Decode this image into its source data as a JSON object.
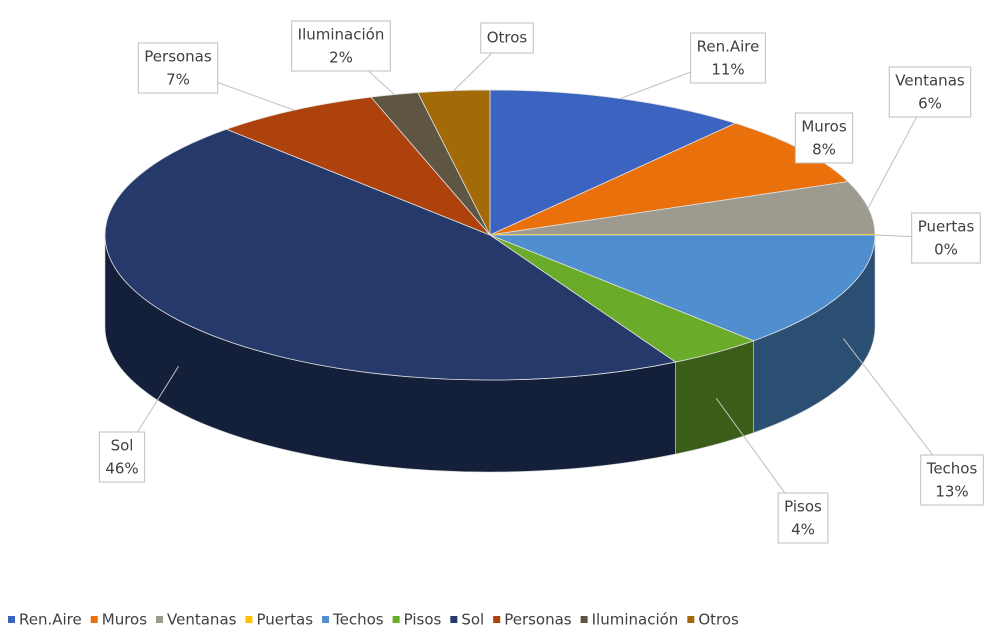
{
  "chart_data": {
    "type": "pie",
    "categories": [
      "Ren.Aire",
      "Muros",
      "Ventanas",
      "Puertas",
      "Techos",
      "Pisos",
      "Sol",
      "Personas",
      "Iluminación",
      "Otros"
    ],
    "values": [
      11,
      8,
      6,
      0,
      13,
      4,
      46,
      7,
      2,
      3
    ],
    "value_labels": [
      "11%",
      "8%",
      "6%",
      "0%",
      "13%",
      "4%",
      "46%",
      "7%",
      "2%",
      null
    ],
    "colors": [
      "#3a64c0",
      "#ea700c",
      "#9d9a8f",
      "#ffc000",
      "#4f8fd0",
      "#6aab2a",
      "#253a6a",
      "#ad420c",
      "#5e5542",
      "#a36a08"
    ],
    "legend": "bottom"
  }
}
